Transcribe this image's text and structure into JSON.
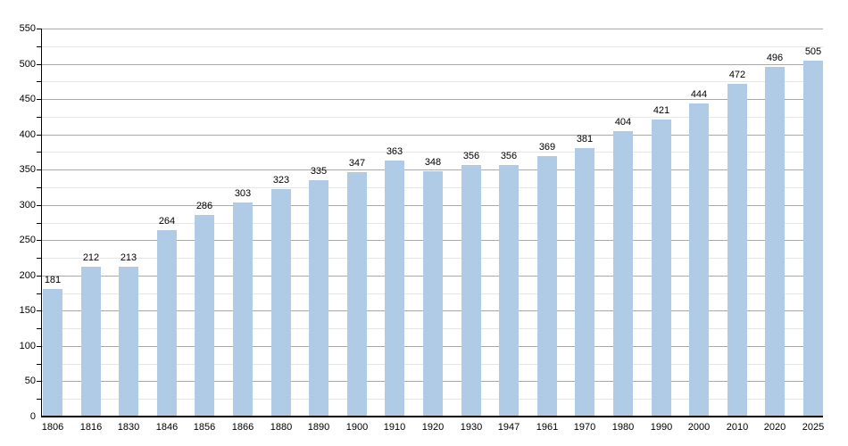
{
  "chart_data": {
    "type": "bar",
    "title": "",
    "xlabel": "",
    "ylabel": "",
    "categories": [
      "1806",
      "1816",
      "1830",
      "1846",
      "1856",
      "1866",
      "1880",
      "1890",
      "1900",
      "1910",
      "1920",
      "1930",
      "1947",
      "1961",
      "1970",
      "1980",
      "1990",
      "2000",
      "2010",
      "2020",
      "2025"
    ],
    "values": [
      181,
      212,
      213,
      264,
      286,
      303,
      323,
      335,
      347,
      363,
      348,
      356,
      356,
      369,
      381,
      404,
      421,
      444,
      472,
      496,
      505
    ],
    "ylim": [
      0,
      550
    ],
    "y_major_step": 50,
    "y_minor_step": 25,
    "y_tick_labels": [
      "0",
      "50",
      "100",
      "150",
      "200",
      "250",
      "300",
      "350",
      "400",
      "450",
      "500",
      "550"
    ],
    "grid": "major+minor horizontal",
    "legend": "none",
    "colors": {
      "bar_fill": "#afcbe6",
      "major_grid": "#a9a9a9",
      "minor_grid": "#e6e6e6",
      "axis": "#000000",
      "text": "#000000",
      "background": "#ffffff"
    }
  }
}
